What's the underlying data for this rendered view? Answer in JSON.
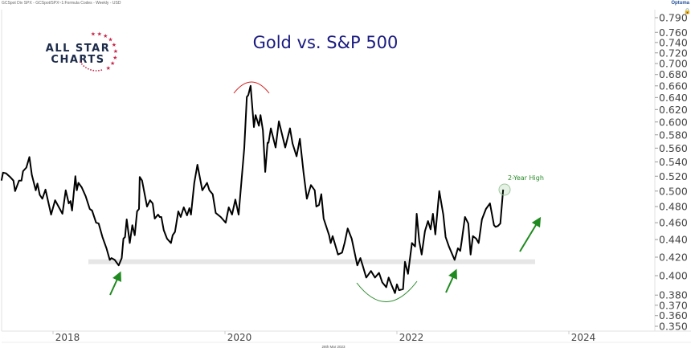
{
  "header": {
    "series_description": "GCSpot Div SPX - GCSpot/SPX~1:Formula Codes - Weekly - USD",
    "brand": "Optuma",
    "date_footer": "28th Mar 2023"
  },
  "logo": {
    "line1": "ALL STAR",
    "line2": "CHARTS",
    "star_color": "#c8264a",
    "text_color": "#1c2b4a"
  },
  "colors": {
    "line": "#000000",
    "title": "#1a1a80",
    "support": "#e6e6e6",
    "green": "#2a8a2a",
    "red": "#d62020"
  },
  "chart_data": {
    "type": "line",
    "title": "Gold vs. S&P 500",
    "xlabel": "",
    "ylabel": "",
    "y_scale": "log",
    "ylim": [
      0.35,
      0.79
    ],
    "xlim": [
      "2017-05",
      "2024-12"
    ],
    "grid": false,
    "y_axis_position": "right",
    "y_ticks": [
      "0.790",
      "0.760",
      "0.740",
      "0.720",
      "0.700",
      "0.680",
      "0.660",
      "0.640",
      "0.620",
      "0.600",
      "0.580",
      "0.560",
      "0.540",
      "0.520",
      "0.500",
      "0.480",
      "0.460",
      "0.440",
      "0.420",
      "0.400",
      "0.380",
      "0.370",
      "0.360",
      "0.350"
    ],
    "x_ticks": [
      "2018",
      "2020",
      "2022",
      "2024"
    ],
    "annotations": {
      "label": "2-Year High",
      "support_level": 0.415,
      "top_arc_near": "2020-04",
      "bottom_arc_near": "2021-11"
    },
    "series": [
      {
        "dates": [
          "2017-05-27",
          "2017-06-03",
          "2017-06-16",
          "2017-07-03",
          "2017-07-17",
          "2017-07-24",
          "2017-08-10",
          "2017-08-20",
          "2017-08-27",
          "2017-09-10",
          "2017-09-23",
          "2017-10-03",
          "2017-10-20",
          "2017-10-27",
          "2017-11-06",
          "2017-11-17",
          "2017-11-30",
          "2017-12-24",
          "2018-01-10",
          "2018-02-10",
          "2018-02-24",
          "2018-03-09",
          "2018-03-16",
          "2018-03-23",
          "2018-04-06",
          "2018-04-12",
          "2018-04-19",
          "2018-05-03",
          "2018-05-20",
          "2018-06-06",
          "2018-06-16",
          "2018-07-03",
          "2018-07-14",
          "2018-07-30",
          "2018-08-16",
          "2018-08-30",
          "2018-09-06",
          "2018-09-20",
          "2018-10-07",
          "2018-10-20",
          "2018-10-27",
          "2018-11-03",
          "2018-11-10",
          "2018-11-23",
          "2018-12-04",
          "2018-12-14",
          "2018-12-24",
          "2019-01-01",
          "2019-01-04",
          "2019-01-14",
          "2019-02-04",
          "2019-02-17",
          "2019-02-28",
          "2019-03-09",
          "2019-03-23",
          "2019-03-30",
          "2019-04-06",
          "2019-04-16",
          "2019-04-30",
          "2019-05-17",
          "2019-05-24",
          "2019-06-03",
          "2019-06-17",
          "2019-06-27",
          "2019-07-10",
          "2019-07-24",
          "2019-08-03",
          "2019-08-10",
          "2019-08-24",
          "2019-09-06",
          "2019-09-27",
          "2019-10-17",
          "2019-10-27",
          "2019-11-10",
          "2019-11-23",
          "2019-12-14",
          "2020-01-04",
          "2020-01-17",
          "2020-01-31",
          "2020-02-14",
          "2020-02-28",
          "2020-03-23",
          "2020-04-03",
          "2020-04-09",
          "2020-04-19",
          "2020-05-03",
          "2020-05-10",
          "2020-05-24",
          "2020-05-31",
          "2020-06-10",
          "2020-06-20",
          "2020-06-30",
          "2020-07-04",
          "2020-07-14",
          "2020-08-03",
          "2020-08-17",
          "2020-09-13",
          "2020-10-03",
          "2020-10-14",
          "2020-10-31",
          "2020-11-14",
          "2020-11-30",
          "2020-12-14",
          "2021-01-01",
          "2021-01-17",
          "2021-01-24",
          "2021-02-04",
          "2021-02-14",
          "2021-02-24",
          "2021-03-19",
          "2021-03-26",
          "2021-04-03",
          "2021-04-26",
          "2021-05-13",
          "2021-05-24",
          "2021-06-06",
          "2021-06-23",
          "2021-07-17",
          "2021-07-30",
          "2021-08-10",
          "2021-08-24",
          "2021-09-13",
          "2021-09-30",
          "2021-10-17",
          "2021-10-31",
          "2021-11-17",
          "2021-11-27",
          "2021-12-10",
          "2021-12-24",
          "2022-01-01",
          "2022-01-10",
          "2022-01-27",
          "2022-02-04",
          "2022-02-17",
          "2022-03-06",
          "2022-03-19",
          "2022-03-26",
          "2022-04-06",
          "2022-04-16",
          "2022-04-30",
          "2022-05-13",
          "2022-05-24",
          "2022-06-03",
          "2022-06-13",
          "2022-06-30",
          "2022-07-17",
          "2022-07-27",
          "2022-08-10",
          "2022-09-03",
          "2022-09-17",
          "2022-09-27",
          "2022-10-03",
          "2022-10-17",
          "2022-10-31",
          "2022-11-10",
          "2022-11-20",
          "2022-12-04",
          "2022-12-14",
          "2022-12-28",
          "2023-01-14",
          "2023-01-31",
          "2023-02-17",
          "2023-02-24",
          "2023-03-06",
          "2023-03-16",
          "2023-03-28"
        ],
        "values": [
          0.514,
          0.525,
          0.524,
          0.519,
          0.514,
          0.5,
          0.514,
          0.514,
          0.527,
          0.532,
          0.547,
          0.522,
          0.501,
          0.51,
          0.495,
          0.49,
          0.502,
          0.47,
          0.488,
          0.471,
          0.501,
          0.484,
          0.487,
          0.475,
          0.52,
          0.501,
          0.511,
          0.505,
          0.493,
          0.477,
          0.475,
          0.46,
          0.459,
          0.443,
          0.43,
          0.417,
          0.419,
          0.417,
          0.411,
          0.419,
          0.441,
          0.443,
          0.464,
          0.436,
          0.457,
          0.445,
          0.474,
          0.477,
          0.519,
          0.514,
          0.48,
          0.488,
          0.484,
          0.465,
          0.47,
          0.467,
          0.467,
          0.451,
          0.441,
          0.436,
          0.445,
          0.449,
          0.474,
          0.467,
          0.479,
          0.469,
          0.478,
          0.47,
          0.511,
          0.536,
          0.501,
          0.511,
          0.501,
          0.496,
          0.472,
          0.467,
          0.46,
          0.479,
          0.47,
          0.489,
          0.47,
          0.56,
          0.641,
          0.644,
          0.66,
          0.592,
          0.611,
          0.594,
          0.611,
          0.587,
          0.526,
          0.568,
          0.568,
          0.59,
          0.561,
          0.601,
          0.561,
          0.59,
          0.567,
          0.548,
          0.574,
          0.525,
          0.49,
          0.508,
          0.501,
          0.48,
          0.482,
          0.496,
          0.465,
          0.445,
          0.436,
          0.444,
          0.423,
          0.425,
          0.436,
          0.453,
          0.441,
          0.411,
          0.419,
          0.41,
          0.398,
          0.405,
          0.398,
          0.403,
          0.393,
          0.388,
          0.398,
          0.39,
          0.382,
          0.391,
          0.385,
          0.386,
          0.415,
          0.402,
          0.436,
          0.432,
          0.471,
          0.438,
          0.423,
          0.45,
          0.462,
          0.452,
          0.471,
          0.446,
          0.5,
          0.47,
          0.443,
          0.432,
          0.417,
          0.43,
          0.427,
          0.438,
          0.467,
          0.459,
          0.423,
          0.444,
          0.441,
          0.436,
          0.464,
          0.477,
          0.484,
          0.457,
          0.455,
          0.456,
          0.459,
          0.502
        ]
      }
    ]
  }
}
